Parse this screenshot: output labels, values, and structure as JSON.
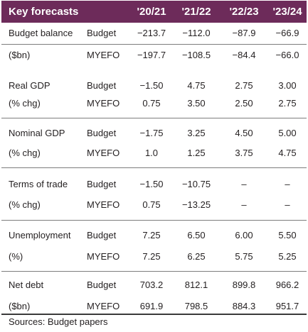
{
  "title": "Key forecasts",
  "years": [
    "'20/21",
    "'21/22",
    "'22/23",
    "'23/24"
  ],
  "rows": [
    {
      "label": "Budget balance",
      "type": "Budget",
      "values": [
        "−213.7",
        "−112.0",
        "−87.9",
        "−66.9"
      ]
    },
    {
      "label": "($bn)",
      "type": "MYEFO",
      "values": [
        "−197.7",
        "−108.5",
        "−84.4",
        "−66.0"
      ]
    },
    {
      "label": "Real GDP",
      "type": "Budget",
      "values": [
        "−1.50",
        "4.75",
        "2.75",
        "3.00"
      ]
    },
    {
      "label": "(% chg)",
      "type": "MYEFO",
      "values": [
        "0.75",
        "3.50",
        "2.50",
        "2.75"
      ]
    },
    {
      "label": "Nominal GDP",
      "type": "Budget",
      "values": [
        "−1.75",
        "3.25",
        "4.50",
        "5.00"
      ]
    },
    {
      "label": "(% chg)",
      "type": "MYEFO",
      "values": [
        "1.0",
        "1.25",
        "3.75",
        "4.75"
      ]
    },
    {
      "label": "Terms of trade",
      "type": "Budget",
      "values": [
        "−1.50",
        "−10.75",
        "–",
        "–"
      ]
    },
    {
      "label": "(% chg)",
      "type": "MYEFO",
      "values": [
        "0.75",
        "−13.25",
        "–",
        "–"
      ]
    },
    {
      "label": "Unemployment",
      "type": "Budget",
      "values": [
        "7.25",
        "6.50",
        "6.00",
        "5.50"
      ]
    },
    {
      "label": "(%)",
      "type": "MYEFO",
      "values": [
        "7.25",
        "6.25",
        "5.75",
        "5.25"
      ]
    },
    {
      "label": "Net debt",
      "type": "Budget",
      "values": [
        "703.2",
        "812.1",
        "899.8",
        "966.2"
      ]
    },
    {
      "label": "($bn)",
      "type": "MYEFO",
      "values": [
        "691.9",
        "798.5",
        "884.3",
        "951.7"
      ]
    }
  ],
  "footer": "Sources: Budget papers",
  "colors": {
    "header_bg": "#6d2b5a",
    "header_text": "#ffffff",
    "body_text": "#231f20"
  }
}
